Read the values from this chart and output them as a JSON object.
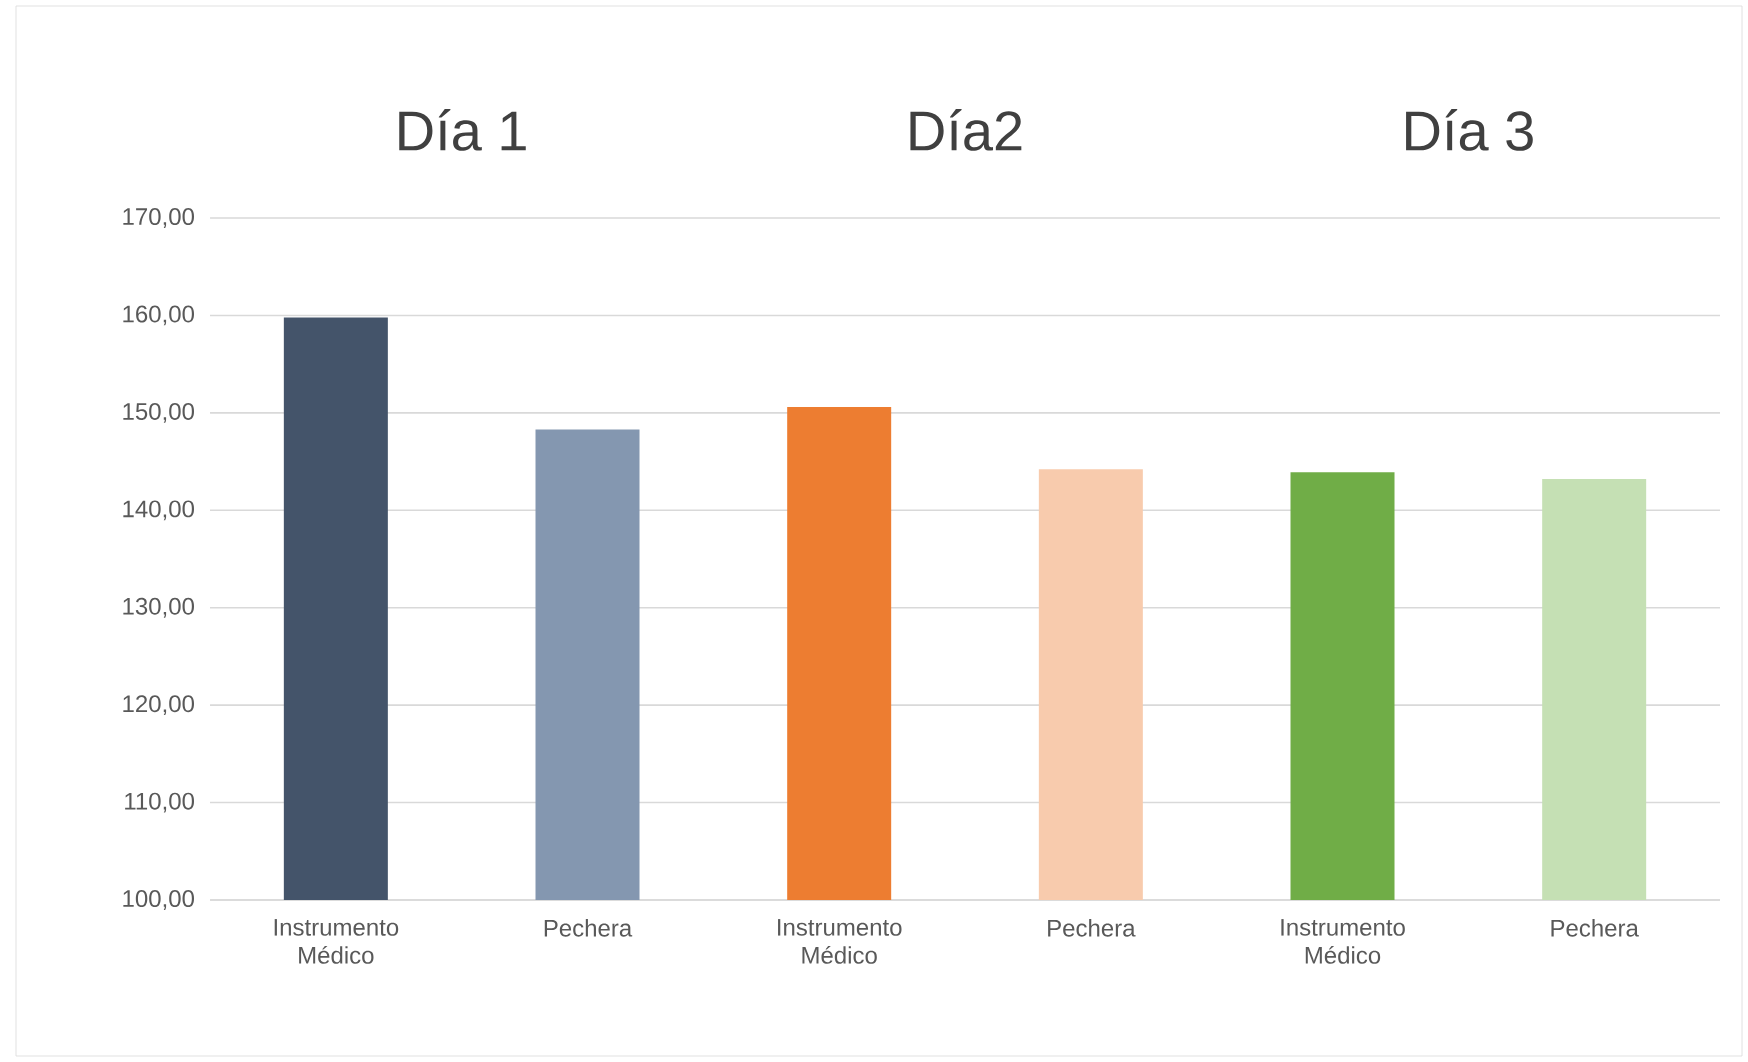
{
  "chart_data": {
    "type": "bar",
    "categories": [
      "Instrumento Médico",
      "Pechera",
      "Instrumento Médico",
      "Pechera",
      "Instrumento Médico",
      "Pechera"
    ],
    "values": [
      159.8,
      148.3,
      150.6,
      144.2,
      143.9,
      143.2
    ],
    "colors": [
      "#44546a",
      "#8497b0",
      "#ed7d31",
      "#f8cbad",
      "#70ad47",
      "#c5e0b4"
    ],
    "ylim": [
      100,
      170
    ],
    "yticks": [
      {
        "value": 100,
        "label": "100,00"
      },
      {
        "value": 110,
        "label": "110,00"
      },
      {
        "value": 120,
        "label": "120,00"
      },
      {
        "value": 130,
        "label": "130,00"
      },
      {
        "value": 140,
        "label": "140,00"
      },
      {
        "value": 150,
        "label": "150,00"
      },
      {
        "value": 160,
        "label": "160,00"
      },
      {
        "value": 170,
        "label": "170,00"
      }
    ],
    "grid": "y",
    "annotations": [
      "Día 1",
      "Día2",
      "Día 3"
    ]
  }
}
